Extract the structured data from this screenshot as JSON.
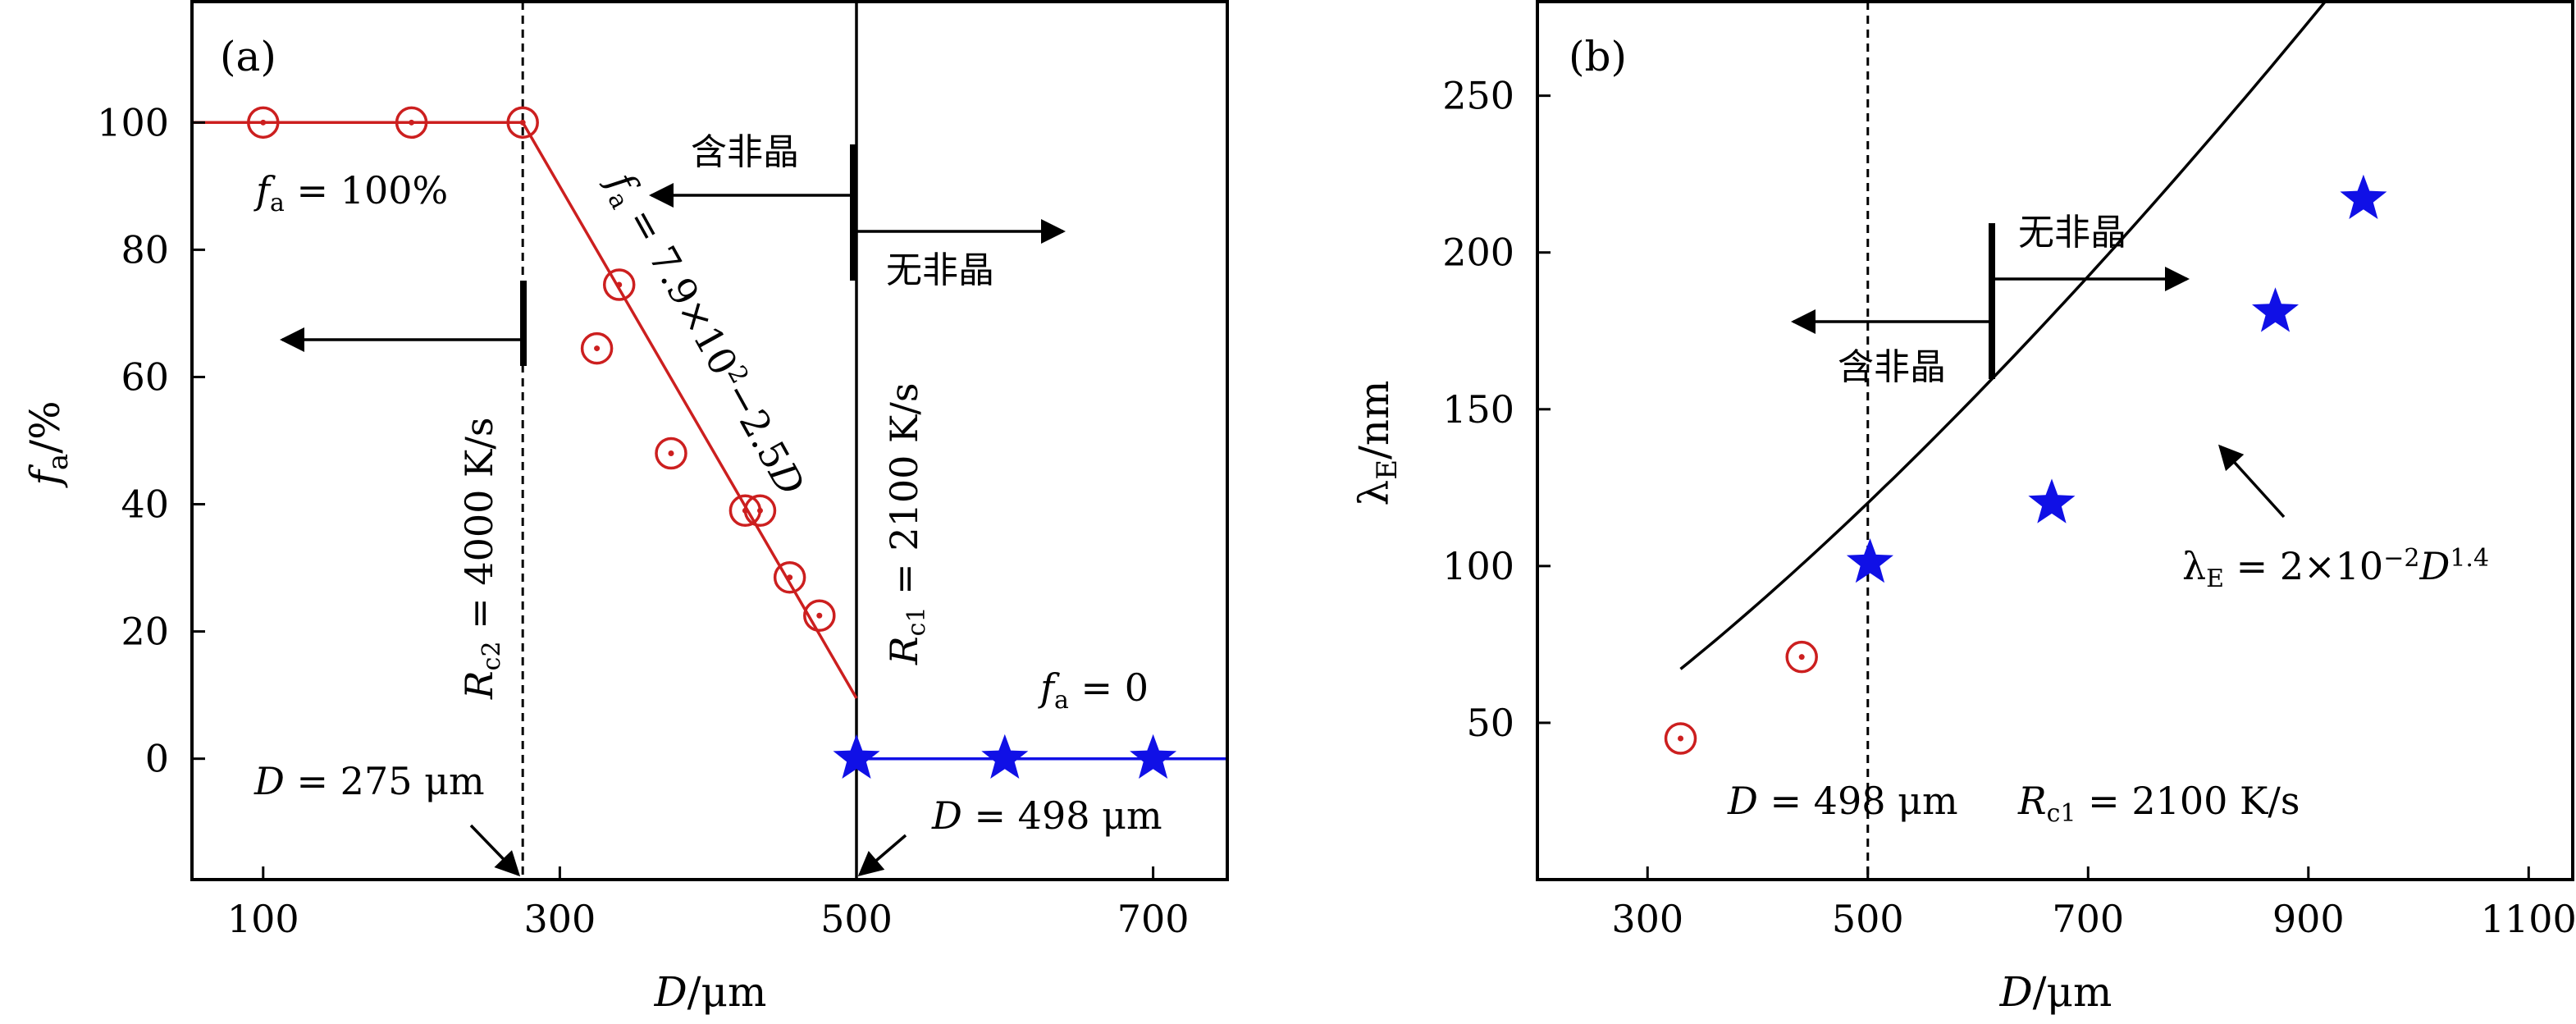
{
  "colors": {
    "red": "#cc1f1f",
    "blue": "#1010e6",
    "black": "#000000"
  },
  "chart_data": [
    {
      "panel_label": "(a)",
      "type": "scatter",
      "xlabel_parts": [
        "D",
        "/μm"
      ],
      "ylabel_parts": [
        "f",
        "a",
        "/%"
      ],
      "xlim": [
        52,
        750
      ],
      "ylim": [
        -19,
        119
      ],
      "xticks": [
        100,
        300,
        500,
        700
      ],
      "yticks": [
        0,
        20,
        40,
        60,
        80,
        100
      ],
      "series": [
        {
          "marker": "circle",
          "color": "red",
          "x": [
            100,
            200,
            275,
            325,
            340,
            375,
            425,
            435,
            455,
            475
          ],
          "y": [
            100,
            100,
            100,
            64.5,
            74.5,
            48,
            39,
            39,
            28.5,
            22.5
          ]
        },
        {
          "marker": "star",
          "color": "blue",
          "x": [
            500,
            600,
            700
          ],
          "y": [
            0,
            0,
            0
          ]
        }
      ],
      "fit_lines": [
        {
          "color": "red",
          "points": [
            [
              52,
              100
            ],
            [
              275,
              100
            ],
            [
              500,
              9.5
            ]
          ]
        },
        {
          "color": "blue",
          "points": [
            [
              500,
              0
            ],
            [
              750,
              0
            ]
          ]
        }
      ],
      "vlines": [
        {
          "x": 275,
          "style": "dashed"
        },
        {
          "x": 500,
          "style": "solid"
        }
      ],
      "annotations": {
        "fa100": {
          "parts": [
            "f",
            "a",
            " = 100%"
          ]
        },
        "fa0": {
          "parts": [
            "f",
            "a",
            " = 0"
          ]
        },
        "fit_eq": {
          "parts": [
            "f",
            "a",
            " = 7.9×10",
            "2",
            "−2.5",
            "D"
          ]
        },
        "rc2": {
          "parts": [
            "R",
            "c2",
            " = 4000 K/s"
          ]
        },
        "rc1": {
          "parts": [
            "R",
            "c1",
            " = 2100 K/s"
          ]
        },
        "d275": {
          "parts": [
            "D",
            " = 275 μm"
          ]
        },
        "d498": {
          "parts": [
            "D",
            " = 498 μm"
          ]
        },
        "contain_amorphous": "含非晶",
        "no_amorphous": "无非晶"
      }
    },
    {
      "panel_label": "(b)",
      "type": "scatter",
      "xlabel_parts": [
        "D",
        "/μm"
      ],
      "ylabel_parts": [
        "λ",
        "E",
        "/nm"
      ],
      "xlim": [
        200,
        1140
      ],
      "ylim": [
        0,
        280
      ],
      "xticks": [
        300,
        500,
        700,
        900,
        1100
      ],
      "yticks": [
        50,
        100,
        150,
        200,
        250
      ],
      "series": [
        {
          "marker": "circle",
          "color": "red",
          "x": [
            330,
            440
          ],
          "y": [
            45,
            71
          ]
        },
        {
          "marker": "star",
          "color": "blue",
          "x": [
            502,
            667,
            870,
            950
          ],
          "y": [
            101,
            120,
            181,
            217
          ]
        }
      ],
      "fit_curve": {
        "color": "black",
        "coef": 0.02,
        "exponent": 1.4,
        "x_range": [
          330,
          950
        ]
      },
      "vlines": [
        {
          "x": 500,
          "style": "dashed"
        }
      ],
      "annotations": {
        "fit_eq": {
          "parts": [
            "λ",
            "E",
            " = 2×10",
            "−2",
            "D",
            "1.4"
          ]
        },
        "rc1": {
          "parts": [
            "R",
            "c1",
            " = 2100 K/s"
          ]
        },
        "d498": {
          "parts": [
            "D",
            " = 498 μm"
          ]
        },
        "contain_amorphous": "含非晶",
        "no_amorphous": "无非晶"
      }
    }
  ]
}
